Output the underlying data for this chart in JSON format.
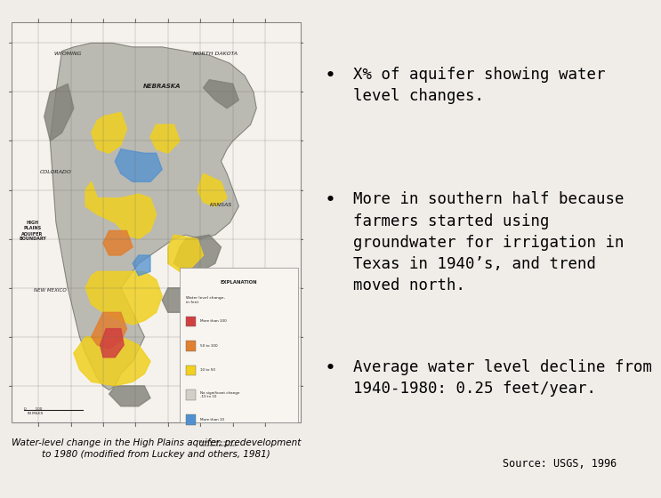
{
  "background_color": "#f0ede8",
  "map_bg_color": "#f5f2ee",
  "map_border_color": "#888888",
  "bullet_points": [
    "X% of aquifer showing water\nlevel changes.",
    "More in southern half because\nfarmers started using\ngroundwater for irrigation in\nTexas in 1940’s, and trend\nmoved north.",
    "Average water level decline from\n1940-1980: 0.25 feet/year."
  ],
  "source_text": "Source: USGS, 1996",
  "caption_text": "Water-level change in the High Plains aquifer, predevelopment\nto 1980 (modified from Luckey and others, 1981)",
  "font_family": "monospace",
  "bullet_fontsize": 12.5,
  "source_fontsize": 8.5,
  "caption_fontsize": 7.5,
  "text_color": "#000000",
  "bullet_color": "#000000",
  "aquifer_gray": "#b0b0a8",
  "dark_gray": "#808078",
  "yellow_color": "#f0d020",
  "orange_color": "#e08030",
  "red_color": "#d04040",
  "blue_color": "#5090d0",
  "grid_color": "#666660",
  "state_label_color": "#222222"
}
